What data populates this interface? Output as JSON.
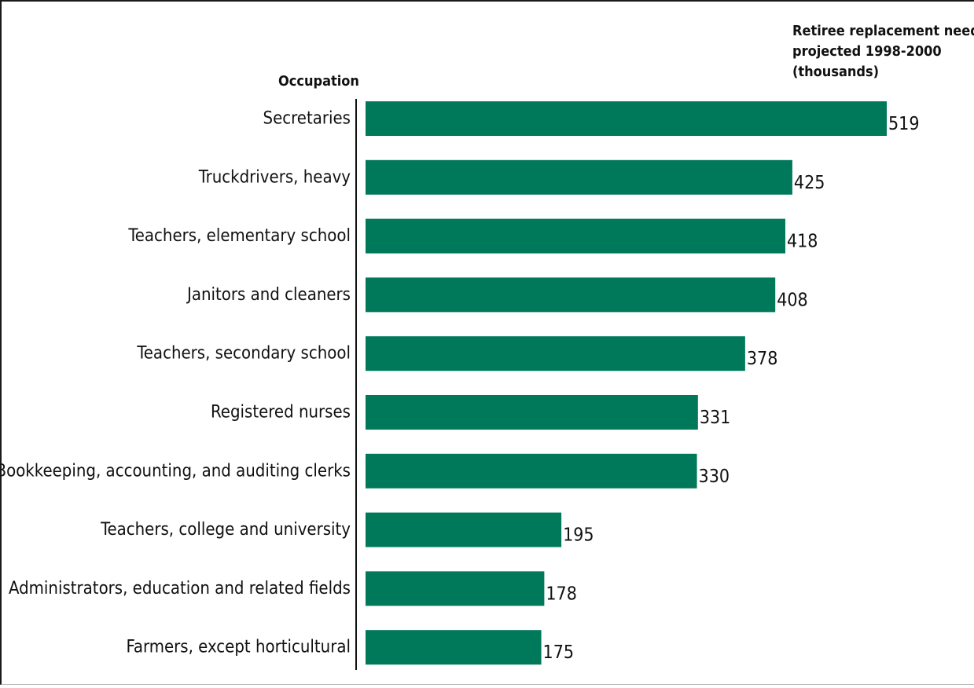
{
  "chart_data": {
    "type": "bar",
    "orientation": "horizontal",
    "y_header": "Occupation",
    "value_header_lines": [
      "Retiree replacement needs,",
      "projected 1998-2000",
      "(thousands)"
    ],
    "categories": [
      "Secretaries",
      "Truckdrivers, heavy",
      "Teachers, elementary school",
      "Janitors and cleaners",
      "Teachers, secondary school",
      "Registered nurses",
      "Bookkeeping, accounting, and auditing clerks",
      "Teachers, college and university",
      "Administrators, education and related fields",
      "Farmers, except horticultural"
    ],
    "values": [
      519,
      425,
      418,
      408,
      378,
      331,
      330,
      195,
      178,
      175
    ],
    "value_labels": [
      "519",
      "425",
      "418",
      "408",
      "378",
      "331",
      "330",
      "195",
      "178",
      "175"
    ],
    "bar_color": "#00785a",
    "axis_color": "#111111",
    "xlim": [
      0,
      519
    ],
    "grid": false,
    "legend": "none"
  }
}
